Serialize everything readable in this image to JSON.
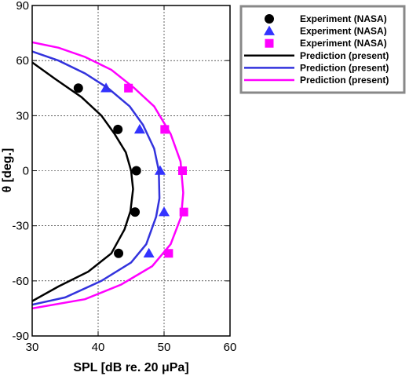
{
  "chart_data": {
    "type": "scatter",
    "xlabel": "SPL [dB re. 20 μPa]",
    "ylabel": "θ [deg.]",
    "xlim": [
      30,
      60
    ],
    "ylim": [
      -90,
      90
    ],
    "x_ticks": [
      30,
      40,
      50,
      60
    ],
    "y_ticks": [
      -90,
      -60,
      -30,
      0,
      30,
      60,
      90
    ],
    "grid": "dashed",
    "legend_position": "top-right",
    "series": [
      {
        "name": "Experiment (NASA)",
        "kind": "marker",
        "marker": "circle",
        "color": "#000000",
        "points": [
          [
            37.0,
            45
          ],
          [
            43.0,
            22.5
          ],
          [
            45.8,
            0
          ],
          [
            45.6,
            -22.5
          ],
          [
            43.1,
            -45
          ]
        ]
      },
      {
        "name": "Experiment (NASA)",
        "kind": "marker",
        "marker": "triangle",
        "color": "#3333ff",
        "points": [
          [
            41.2,
            45
          ],
          [
            46.3,
            22.5
          ],
          [
            49.4,
            0
          ],
          [
            50.0,
            -22.5
          ],
          [
            47.7,
            -45
          ]
        ]
      },
      {
        "name": "Experiment (NASA)",
        "kind": "marker",
        "marker": "square",
        "color": "#ff00ff",
        "points": [
          [
            44.6,
            45
          ],
          [
            50.1,
            22.5
          ],
          [
            52.8,
            0
          ],
          [
            53.0,
            -22.5
          ],
          [
            50.7,
            -45
          ]
        ]
      },
      {
        "name": "Prediction (present)",
        "kind": "line",
        "color": "#000000",
        "points": [
          [
            30.0,
            59
          ],
          [
            33.5,
            50
          ],
          [
            37.5,
            40
          ],
          [
            40.5,
            30
          ],
          [
            42.5,
            20
          ],
          [
            44.2,
            10
          ],
          [
            45.0,
            0
          ],
          [
            45.3,
            -10
          ],
          [
            44.9,
            -22
          ],
          [
            44.0,
            -32
          ],
          [
            42.0,
            -45
          ],
          [
            38.5,
            -55
          ],
          [
            34.0,
            -63
          ],
          [
            30.0,
            -71
          ]
        ]
      },
      {
        "name": "Prediction (present)",
        "kind": "line",
        "color": "#3333dd",
        "points": [
          [
            30.0,
            65
          ],
          [
            34.0,
            60
          ],
          [
            38.0,
            53
          ],
          [
            41.5,
            45
          ],
          [
            44.8,
            35
          ],
          [
            46.8,
            25
          ],
          [
            48.5,
            12
          ],
          [
            49.2,
            0
          ],
          [
            49.3,
            -15
          ],
          [
            48.8,
            -25
          ],
          [
            47.3,
            -40
          ],
          [
            45.0,
            -50
          ],
          [
            40.5,
            -60
          ],
          [
            35.0,
            -69
          ],
          [
            30.0,
            -73
          ]
        ]
      },
      {
        "name": "Prediction (present)",
        "kind": "line",
        "color": "#ff00ff",
        "points": [
          [
            30.0,
            70
          ],
          [
            34.0,
            67
          ],
          [
            38.0,
            62
          ],
          [
            42.0,
            55
          ],
          [
            45.5,
            45
          ],
          [
            48.5,
            35
          ],
          [
            51.0,
            20
          ],
          [
            52.5,
            5
          ],
          [
            52.9,
            -12
          ],
          [
            52.6,
            -25
          ],
          [
            51.0,
            -40
          ],
          [
            48.2,
            -52
          ],
          [
            43.5,
            -62
          ],
          [
            38.0,
            -70
          ],
          [
            30.0,
            -75
          ]
        ]
      }
    ]
  }
}
